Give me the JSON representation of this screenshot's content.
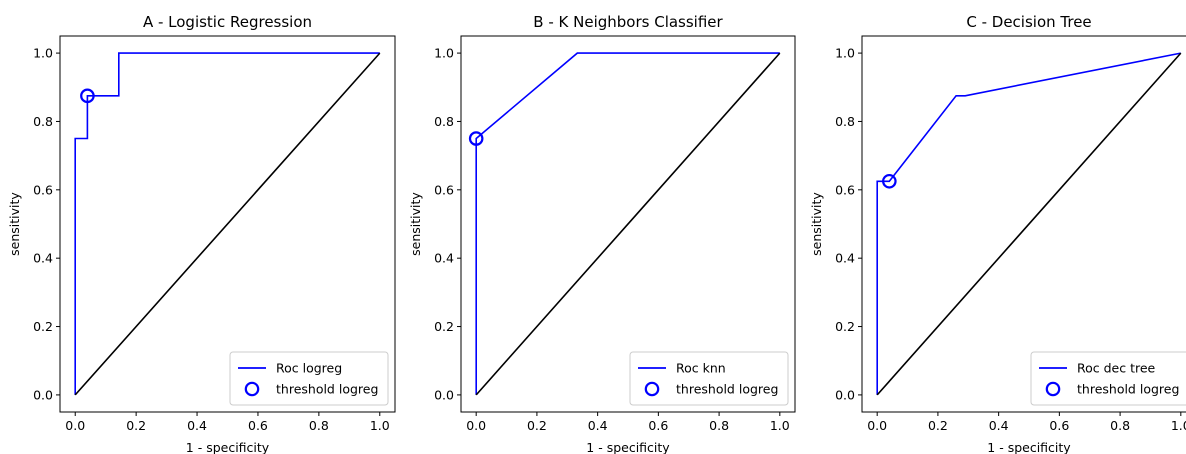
{
  "chart_data": [
    {
      "type": "line",
      "title": "A - Logistic Regression",
      "xlabel": "1 - specificity",
      "ylabel": "sensitivity",
      "xlim": [
        -0.05,
        1.05
      ],
      "ylim": [
        -0.05,
        1.05
      ],
      "xticks": [
        "0.0",
        "0.2",
        "0.4",
        "0.6",
        "0.8",
        "1.0"
      ],
      "yticks": [
        "0.0",
        "0.2",
        "0.4",
        "0.6",
        "0.8",
        "1.0"
      ],
      "grid": false,
      "legend_position": "lower right",
      "series": [
        {
          "name": "Roc logreg",
          "kind": "line",
          "color": "#0000ff",
          "x": [
            0.0,
            0.0,
            0.0,
            0.04,
            0.04,
            0.143,
            0.143,
            1.0
          ],
          "y": [
            0.0,
            0.75,
            0.75,
            0.75,
            0.875,
            0.875,
            1.0,
            1.0
          ]
        },
        {
          "name": "threshold logreg",
          "kind": "marker",
          "color": "#0000ff",
          "x": [
            0.04
          ],
          "y": [
            0.875
          ]
        },
        {
          "kind": "diagonal",
          "color": "#000000",
          "x": [
            0.0,
            1.0
          ],
          "y": [
            0.0,
            1.0
          ]
        }
      ]
    },
    {
      "type": "line",
      "title": "B - K Neighbors Classifier",
      "xlabel": "1 - specificity",
      "ylabel": "sensitivity",
      "xlim": [
        -0.05,
        1.05
      ],
      "ylim": [
        -0.05,
        1.05
      ],
      "xticks": [
        "0.0",
        "0.2",
        "0.4",
        "0.6",
        "0.8",
        "1.0"
      ],
      "yticks": [
        "0.0",
        "0.2",
        "0.4",
        "0.6",
        "0.8",
        "1.0"
      ],
      "grid": false,
      "legend_position": "lower right",
      "series": [
        {
          "name": "Roc knn",
          "kind": "line",
          "color": "#0000ff",
          "x": [
            0.0,
            0.0,
            0.333,
            1.0
          ],
          "y": [
            0.0,
            0.75,
            1.0,
            1.0
          ]
        },
        {
          "name": "threshold logreg",
          "kind": "marker",
          "color": "#0000ff",
          "x": [
            0.0
          ],
          "y": [
            0.75
          ]
        },
        {
          "kind": "diagonal",
          "color": "#000000",
          "x": [
            0.0,
            1.0
          ],
          "y": [
            0.0,
            1.0
          ]
        }
      ]
    },
    {
      "type": "line",
      "title": "C - Decision Tree",
      "xlabel": "1 - specificity",
      "ylabel": "sensitivity",
      "xlim": [
        -0.05,
        1.05
      ],
      "ylim": [
        -0.05,
        1.05
      ],
      "xticks": [
        "0.0",
        "0.2",
        "0.4",
        "0.6",
        "0.8",
        "1.0"
      ],
      "yticks": [
        "0.0",
        "0.2",
        "0.4",
        "0.6",
        "0.8",
        "1.0"
      ],
      "grid": false,
      "legend_position": "lower right",
      "series": [
        {
          "name": "Roc dec tree",
          "kind": "line",
          "color": "#0000ff",
          "x": [
            0.0,
            0.0,
            0.04,
            0.26,
            0.29,
            1.0
          ],
          "y": [
            0.0,
            0.625,
            0.625,
            0.875,
            0.875,
            1.0
          ]
        },
        {
          "name": "threshold logreg",
          "kind": "marker",
          "color": "#0000ff",
          "x": [
            0.04
          ],
          "y": [
            0.625
          ]
        },
        {
          "kind": "diagonal",
          "color": "#000000",
          "x": [
            0.0,
            1.0
          ],
          "y": [
            0.0,
            1.0
          ]
        }
      ]
    }
  ]
}
